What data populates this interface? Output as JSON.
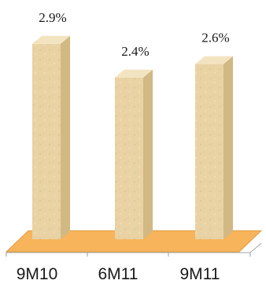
{
  "chart_data": {
    "type": "bar",
    "categories": [
      "9M10",
      "6M11",
      "9M11"
    ],
    "values": [
      2.9,
      2.4,
      2.6
    ],
    "value_labels": [
      "2.9%",
      "2.4%",
      "2.6%"
    ],
    "title": "",
    "xlabel": "",
    "ylabel": "",
    "ylim": [
      0,
      3.2
    ],
    "grid": false,
    "legend": "none",
    "style": "3d-columns",
    "colors": {
      "bar_front": "#e9d2a4",
      "bar_top": "#f3e4c1",
      "bar_side": "#d2b883",
      "floor": "#f7b45a",
      "floor_edge": "#d98f2b",
      "axis": "#888888"
    }
  }
}
